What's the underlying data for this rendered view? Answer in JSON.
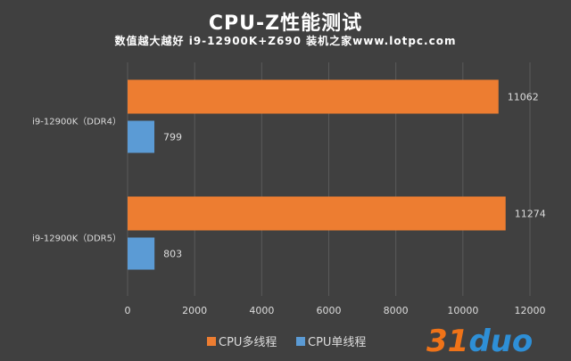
{
  "title": "CPU-Z性能测试",
  "subtitle": "数值越大越好 i9-12900K+Z690 装机之家www.lotpc.com",
  "watermark": {
    "prefix": "31",
    "suffix": "duo",
    "faint": "装机之家"
  },
  "colors": {
    "background": "#404040",
    "series1": "#ed7d31",
    "series2": "#5b9bd5",
    "grid": "#5a5a5a",
    "text": "#dcdcdc"
  },
  "chart_data": {
    "type": "bar",
    "orientation": "horizontal",
    "categories": [
      "i9-12900K（DDR4）",
      "i9-12900K（DDR5）"
    ],
    "series": [
      {
        "name": "CPU多线程",
        "color": "#ed7d31",
        "values": [
          11062,
          11274
        ]
      },
      {
        "name": "CPU单线程",
        "color": "#5b9bd5",
        "values": [
          799,
          803
        ]
      }
    ],
    "xlim": [
      0,
      12000
    ],
    "xticks": [
      0,
      2000,
      4000,
      6000,
      8000,
      10000,
      12000
    ],
    "grid": true,
    "legend": "bottom"
  }
}
